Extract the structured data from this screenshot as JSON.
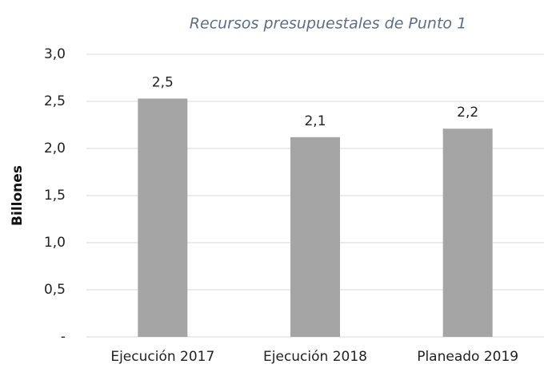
{
  "chart_data": {
    "type": "bar",
    "title": "Recursos presupuestales de Punto 1",
    "y_label": "Billones",
    "categories": [
      "Ejecución 2017",
      "Ejecución 2018",
      "Planeado 2019"
    ],
    "values": [
      2.53,
      2.12,
      2.21
    ],
    "value_labels": [
      "2,5",
      "2,1",
      "2,2"
    ],
    "color": "#a5a5a5",
    "ylim": [
      0,
      3
    ],
    "yticks": [
      {
        "value": 0,
        "label": "-"
      },
      {
        "value": 0.5,
        "label": "0,5"
      },
      {
        "value": 1,
        "label": "1,0"
      },
      {
        "value": 1.5,
        "label": "1,5"
      },
      {
        "value": 2,
        "label": "2,0"
      },
      {
        "value": 2.5,
        "label": "2,5"
      },
      {
        "value": 3,
        "label": "3,0"
      }
    ],
    "grid": true
  }
}
